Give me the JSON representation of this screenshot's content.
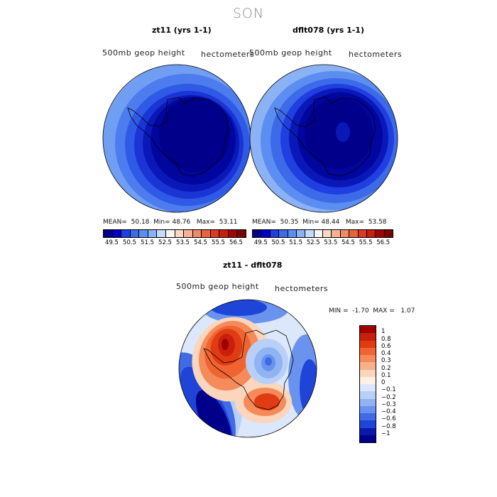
{
  "title": "SON",
  "panels": {
    "left": {
      "title": "zt11 (yrs 1-1)",
      "variable": "500mb geop height",
      "units": "hectometers",
      "stats": {
        "mean_label": "MEAN=",
        "mean": "50.18",
        "min_label": "Min=",
        "min": "48.76",
        "max_label": "Max=",
        "max": "53.11"
      }
    },
    "right": {
      "title": "dflt078 (yrs 1-1)",
      "variable": "500mb geop height",
      "units": "hectometers",
      "stats": {
        "mean_label": "MEAN=",
        "mean": "50.35",
        "min_label": "Min=",
        "min": "48.44",
        "max_label": "Max=",
        "max": "53.58"
      }
    },
    "diff": {
      "title": "zt11 - dflt078",
      "variable": "500mb geop height",
      "units": "hectometers",
      "stats": {
        "min_label": "MIN =",
        "min": "-1.70",
        "max_label": "MAX =",
        "max": "1.07"
      }
    }
  },
  "colorbar_levels": [
    "49.5",
    "50.5",
    "51.5",
    "52.5",
    "53.5",
    "54.5",
    "55.5",
    "56.5"
  ],
  "colorbar_colors": [
    "#00008b",
    "#0000c8",
    "#1f3fe0",
    "#3d6ae8",
    "#5b8ef0",
    "#8bb2f5",
    "#c4dbfb",
    "#f5f5f5",
    "#fcd9c4",
    "#f9b196",
    "#f08a67",
    "#e8623e",
    "#dc3a1e",
    "#c81e0a",
    "#a00000",
    "#7a0000"
  ],
  "diff_levels": [
    "1",
    "0.8",
    "0.6",
    "0.4",
    "0.3",
    "0.2",
    "0.1",
    "0",
    "−0.1",
    "−0.2",
    "−0.3",
    "−0.4",
    "−0.6",
    "−0.8",
    "−1"
  ],
  "diff_colors": [
    "#a00000",
    "#c8200a",
    "#e03c14",
    "#f06432",
    "#f58a5a",
    "#f8b08a",
    "#fbd5bc",
    "#fdf0e4",
    "#dbe8fb",
    "#b8d0f8",
    "#8fb3f3",
    "#6a93ee",
    "#3f6ce6",
    "#1f44d8",
    "#0a1aa8",
    "#00008b"
  ],
  "chart_data": {
    "type": "map",
    "projection": "south polar stereographic",
    "maps": [
      {
        "name": "zt11 (yrs 1-1)",
        "mean": 50.18,
        "min": 48.76,
        "max": 53.11
      },
      {
        "name": "dflt078 (yrs 1-1)",
        "mean": 50.35,
        "min": 48.44,
        "max": 53.58
      },
      {
        "name": "zt11 - dflt078",
        "min": -1.7,
        "max": 1.07
      }
    ]
  }
}
